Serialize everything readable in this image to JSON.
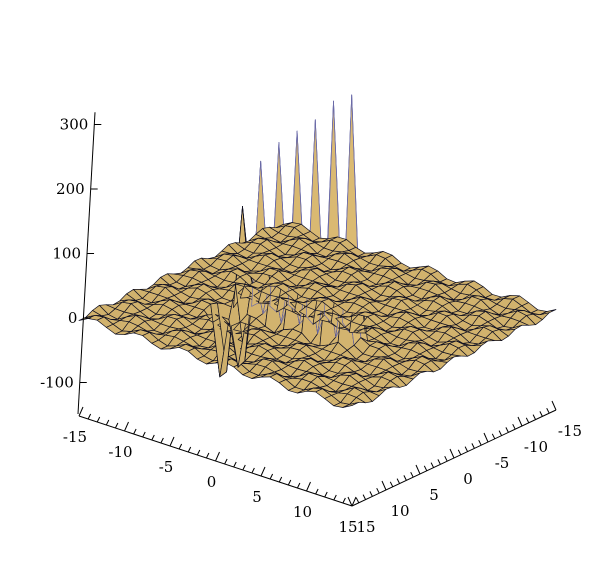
{
  "chart_data": {
    "type": "surface",
    "title": "",
    "xlabel": "",
    "ylabel": "",
    "zlabel": "",
    "x_range": [
      -15,
      15
    ],
    "y_range": [
      -15,
      15
    ],
    "z_range": [
      -150,
      350
    ],
    "x_ticks": [
      "-15",
      "-10",
      "-5",
      "0",
      "5",
      "10",
      "15"
    ],
    "x_tick_values": [
      -15,
      -10,
      -5,
      0,
      5,
      10,
      15
    ],
    "y_ticks": [
      "-15",
      "-10",
      "-5",
      "0",
      "5",
      "10",
      "15"
    ],
    "y_tick_values": [
      -15,
      -10,
      -5,
      0,
      5,
      10,
      15
    ],
    "z_ticks": [
      "-100",
      "0",
      "100",
      "200",
      "300"
    ],
    "z_tick_values": [
      -100,
      0,
      100,
      200,
      300
    ],
    "surface_color": "#dcbb73",
    "mesh_color": "#101020",
    "highlight_color": "#6a6aa8",
    "grid": false,
    "legend": "none",
    "series": [
      {
        "ridge_peaks": [
          {
            "x": -6,
            "z": 150
          },
          {
            "x": -4,
            "z": 240
          },
          {
            "x": -2,
            "z": 270
          },
          {
            "x": 0,
            "z": 300
          },
          {
            "x": 2,
            "z": 330
          },
          {
            "x": 4,
            "z": 360
          },
          {
            "x": 6,
            "z": 390
          }
        ],
        "ridge_troughs": [
          {
            "x": -7,
            "z": -130
          },
          {
            "x": -5,
            "z": -100
          }
        ]
      }
    ]
  }
}
